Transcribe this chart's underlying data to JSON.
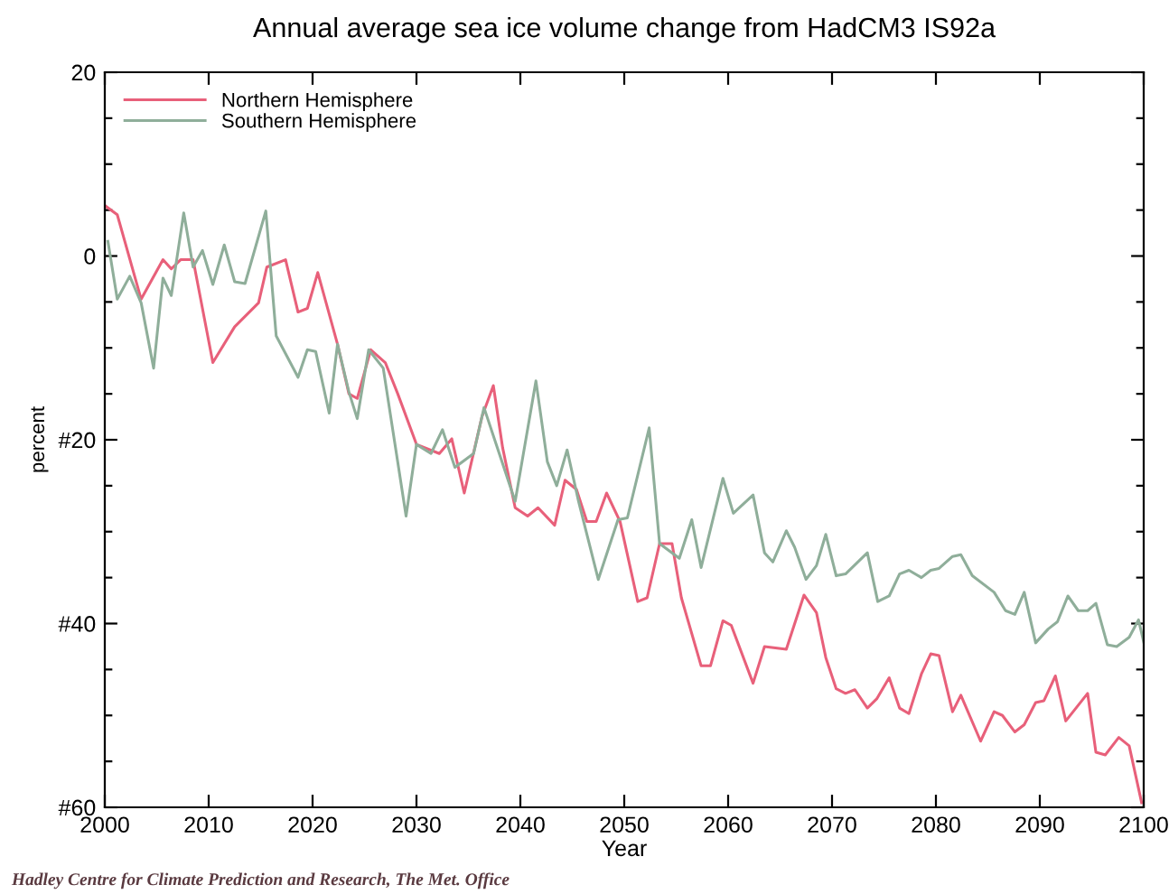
{
  "chart_data": {
    "type": "line",
    "title": "Annual average sea ice volume change from HadCM3 IS92a",
    "xlabel": "Year",
    "ylabel": "percent",
    "annotations": [
      "Hadley Centre for Climate Prediction and Research, The Met. Office"
    ],
    "xlim": [
      2000,
      2100
    ],
    "xticks": [
      2000,
      2010,
      2020,
      2030,
      2040,
      2050,
      2060,
      2070,
      2080,
      2090,
      2100
    ],
    "ylim": [
      -60,
      20
    ],
    "yticks": [
      {
        "value": -60,
        "label": "#60"
      },
      {
        "value": -55,
        "label": null
      },
      {
        "value": -50,
        "label": null
      },
      {
        "value": -45,
        "label": null
      },
      {
        "value": -40,
        "label": "#40"
      },
      {
        "value": -35,
        "label": null
      },
      {
        "value": -30,
        "label": null
      },
      {
        "value": -25,
        "label": null
      },
      {
        "value": -20,
        "label": "#20"
      },
      {
        "value": -15,
        "label": null
      },
      {
        "value": -10,
        "label": null
      },
      {
        "value": -5,
        "label": null
      },
      0,
      {
        "value": 5,
        "label": null
      },
      {
        "value": 10,
        "label": null
      },
      {
        "value": 15,
        "label": null
      },
      20
    ],
    "legend": "top left",
    "grid": false,
    "line_style": "solid",
    "marker": "none",
    "series": [
      {
        "name": "Northern Hemisphere",
        "color": "#e8607a",
        "x": [
          2000,
          2001.2,
          2003.5,
          2005.6,
          2006.4,
          2007.3,
          2008.5,
          2010.4,
          2012.5,
          2014.8,
          2015.6,
          2017.4,
          2018.6,
          2019.5,
          2020.5,
          2022.4,
          2023.5,
          2024.3,
          2025.6,
          2027,
          2028.2,
          2030,
          2032.2,
          2033.4,
          2034.6,
          2036.3,
          2037.4,
          2038.3,
          2039.5,
          2040.7,
          2041.7,
          2043.3,
          2044.3,
          2045.4,
          2046.4,
          2047.3,
          2048.3,
          2049.6,
          2051.3,
          2052.2,
          2053.4,
          2054.6,
          2055.5,
          2057.4,
          2058.3,
          2059.5,
          2060.3,
          2062.4,
          2063.5,
          2065.6,
          2067.3,
          2068.5,
          2069.4,
          2070.4,
          2071.3,
          2072.2,
          2073.4,
          2074.3,
          2075.5,
          2076.5,
          2077.4,
          2078.6,
          2079.5,
          2080.3,
          2081.6,
          2082.4,
          2084.3,
          2085.6,
          2086.4,
          2087.6,
          2088.5,
          2089.6,
          2090.4,
          2091.5,
          2092.5,
          2094.6,
          2095.4,
          2096.3,
          2097.6,
          2098.6,
          2099.8
        ],
        "values": [
          5.5,
          4.5,
          -4.7,
          -0.4,
          -1.4,
          -0.4,
          -0.4,
          -11.6,
          -7.7,
          -5.1,
          -1.2,
          -0.4,
          -6.1,
          -5.7,
          -1.8,
          -9.6,
          -15,
          -15.5,
          -10.2,
          -11.6,
          -15,
          -20.5,
          -21.5,
          -19.9,
          -25.8,
          -17.5,
          -14.1,
          -20.9,
          -27.4,
          -28.3,
          -27.4,
          -29.3,
          -24.4,
          -25.4,
          -28.9,
          -28.9,
          -25.8,
          -28.9,
          -37.6,
          -37.2,
          -31.3,
          -31.3,
          -37.2,
          -44.6,
          -44.6,
          -39.7,
          -40.2,
          -46.5,
          -42.5,
          -42.8,
          -36.9,
          -38.8,
          -43.7,
          -47.1,
          -47.6,
          -47.2,
          -49.2,
          -48.2,
          -45.9,
          -49.2,
          -49.8,
          -45.5,
          -43.3,
          -43.5,
          -49.6,
          -47.8,
          -52.8,
          -49.6,
          -50,
          -51.8,
          -51,
          -48.6,
          -48.4,
          -45.7,
          -50.6,
          -47.6,
          -54,
          -54.3,
          -52.4,
          -53.3,
          -59.5
        ]
      },
      {
        "name": "Southern Hemisphere",
        "color": "#8fae9a",
        "x": [
          2000.3,
          2001.2,
          2002.4,
          2003.5,
          2004.7,
          2005.6,
          2006.4,
          2007.6,
          2008.5,
          2009.4,
          2010.4,
          2011.5,
          2012.5,
          2013.5,
          2015.5,
          2016.5,
          2018.6,
          2019.5,
          2020.3,
          2021.6,
          2022.4,
          2023.5,
          2024.3,
          2025.4,
          2026.8,
          2029,
          2030,
          2031.4,
          2032.5,
          2033.7,
          2035.5,
          2036.5,
          2039.5,
          2041.5,
          2042.6,
          2043.5,
          2044.5,
          2045.6,
          2047.5,
          2049.4,
          2050.3,
          2052.4,
          2053.4,
          2055.3,
          2056.5,
          2057.4,
          2059.5,
          2060.5,
          2062.4,
          2063.5,
          2064.3,
          2065.6,
          2066.4,
          2067.5,
          2068.5,
          2069.4,
          2070.4,
          2071.3,
          2073.4,
          2074.4,
          2075.5,
          2076.5,
          2077.4,
          2078.6,
          2079.5,
          2080.3,
          2081.6,
          2082.4,
          2083.5,
          2085.6,
          2086.7,
          2087.6,
          2088.5,
          2089.6,
          2090.8,
          2091.7,
          2092.7,
          2093.7,
          2094.6,
          2095.4,
          2096.5,
          2097.4,
          2098.6,
          2099.5,
          2100
        ],
        "values": [
          1.6,
          -4.7,
          -2.2,
          -5.1,
          -12.2,
          -2.4,
          -4.3,
          4.7,
          -1.2,
          0.6,
          -3.1,
          1.2,
          -2.8,
          -3,
          4.9,
          -8.7,
          -13.2,
          -10.2,
          -10.4,
          -17.1,
          -9.6,
          -14.8,
          -17.7,
          -10.2,
          -12.2,
          -28.3,
          -20.5,
          -21.5,
          -18.9,
          -23,
          -21.5,
          -16.5,
          -26.7,
          -13.6,
          -22.4,
          -25,
          -21.1,
          -26.7,
          -35.2,
          -28.7,
          -28.5,
          -18.7,
          -31.3,
          -32.9,
          -28.7,
          -33.9,
          -24.2,
          -28,
          -26,
          -32.3,
          -33.3,
          -29.9,
          -31.7,
          -35.2,
          -33.7,
          -30.3,
          -34.8,
          -34.6,
          -32.3,
          -37.6,
          -37,
          -34.6,
          -34.2,
          -35,
          -34.2,
          -34,
          -32.7,
          -32.5,
          -34.8,
          -36.6,
          -38.6,
          -39,
          -36.6,
          -42.1,
          -40.6,
          -39.8,
          -37,
          -38.6,
          -38.6,
          -37.8,
          -42.3,
          -42.5,
          -41.5,
          -39.6,
          -42
        ]
      }
    ]
  }
}
